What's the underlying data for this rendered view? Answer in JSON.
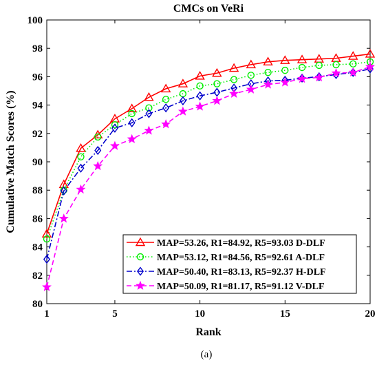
{
  "chart_data": {
    "type": "line",
    "title": "CMCs on VeRi",
    "xlabel": "Rank",
    "ylabel": "Cumulative Match Scores (%)",
    "caption": "(a)",
    "xlim": [
      1,
      20
    ],
    "ylim": [
      80,
      100
    ],
    "xticks": [
      1,
      5,
      10,
      15,
      20
    ],
    "yticks": [
      80,
      82,
      84,
      86,
      88,
      90,
      92,
      94,
      96,
      98,
      100
    ],
    "grid": false,
    "legend_position": "lower-right",
    "x": [
      1,
      2,
      3,
      4,
      5,
      6,
      7,
      8,
      9,
      10,
      11,
      12,
      13,
      14,
      15,
      16,
      17,
      18,
      19,
      20
    ],
    "series": [
      {
        "name": "MAP=53.26, R1=84.92, R5=93.03 D-DLF",
        "color": "#ff0000",
        "line_style": "solid",
        "marker": "triangle",
        "values": [
          84.92,
          88.4,
          90.95,
          91.9,
          93.03,
          93.75,
          94.55,
          95.15,
          95.5,
          96.05,
          96.25,
          96.6,
          96.85,
          97.05,
          97.15,
          97.2,
          97.25,
          97.3,
          97.45,
          97.6
        ]
      },
      {
        "name": "MAP=53.12, R1=84.56, R5=92.61 A-DLF",
        "color": "#00ee00",
        "line_style": "dotted",
        "marker": "circle",
        "values": [
          84.56,
          88.0,
          90.35,
          91.75,
          92.61,
          93.4,
          93.8,
          94.4,
          94.8,
          95.35,
          95.5,
          95.8,
          96.1,
          96.3,
          96.45,
          96.65,
          96.8,
          96.85,
          96.9,
          97.05
        ]
      },
      {
        "name": "MAP=50.40, R1=83.13, R5=92.37 H-DLF",
        "color": "#0000cc",
        "line_style": "dash-dot",
        "marker": "diamond",
        "values": [
          83.13,
          87.95,
          89.55,
          90.8,
          92.37,
          92.75,
          93.4,
          93.8,
          94.3,
          94.65,
          94.9,
          95.2,
          95.5,
          95.7,
          95.75,
          95.9,
          96.0,
          96.15,
          96.3,
          96.55
        ]
      },
      {
        "name": "MAP=50.09, R1=81.17, R5=91.12 V-DLF",
        "color": "#ff00ff",
        "line_style": "dashed",
        "marker": "star",
        "values": [
          81.17,
          86.0,
          88.05,
          89.7,
          91.12,
          91.6,
          92.2,
          92.65,
          93.55,
          93.9,
          94.3,
          94.8,
          95.1,
          95.45,
          95.6,
          95.85,
          95.95,
          96.25,
          96.3,
          96.7
        ]
      }
    ]
  }
}
